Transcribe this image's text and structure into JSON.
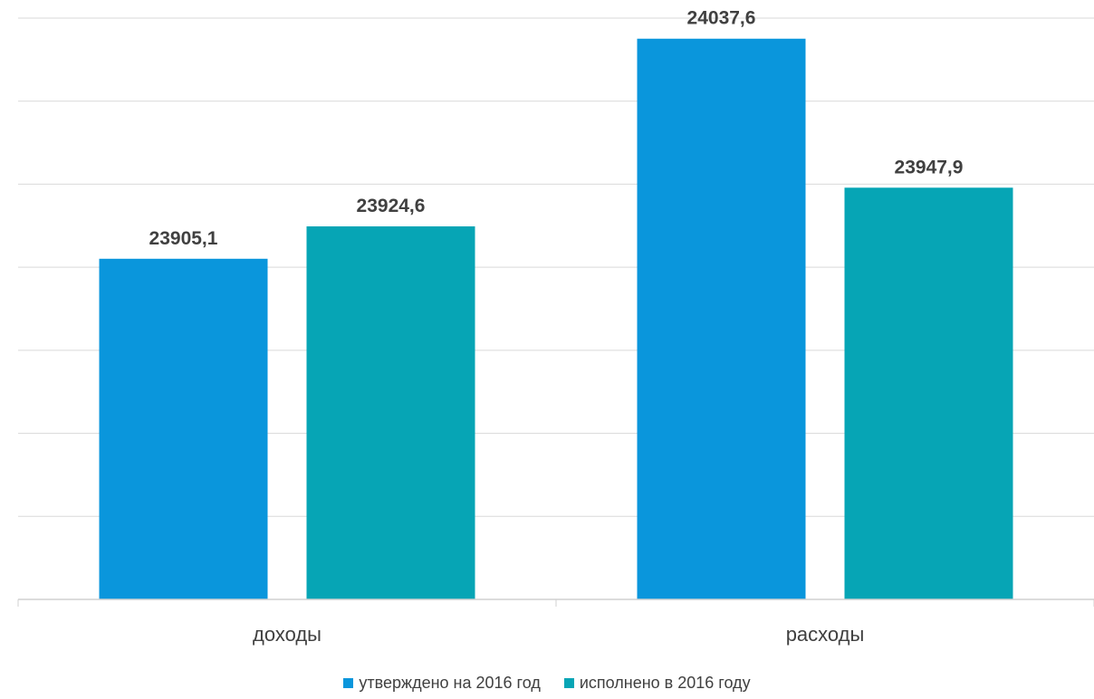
{
  "chart_data": {
    "type": "bar",
    "title": "",
    "xlabel": "",
    "ylabel": "",
    "categories": [
      "доходы",
      "расходы"
    ],
    "series": [
      {
        "name": "утверждено на 2016 год",
        "values": [
          23905.1,
          24037.6
        ],
        "labels": [
          "23905,1",
          "24037,6"
        ],
        "color": "#0a96dc"
      },
      {
        "name": "исполнено в 2016 году",
        "values": [
          23924.6,
          23947.9
        ],
        "labels": [
          "23924,6",
          "23947,9"
        ],
        "color": "#06a5b5"
      }
    ],
    "ylim": [
      23700,
      24050
    ],
    "grid": true,
    "y_axis_labels_shown": false,
    "legend_position": "bottom"
  }
}
